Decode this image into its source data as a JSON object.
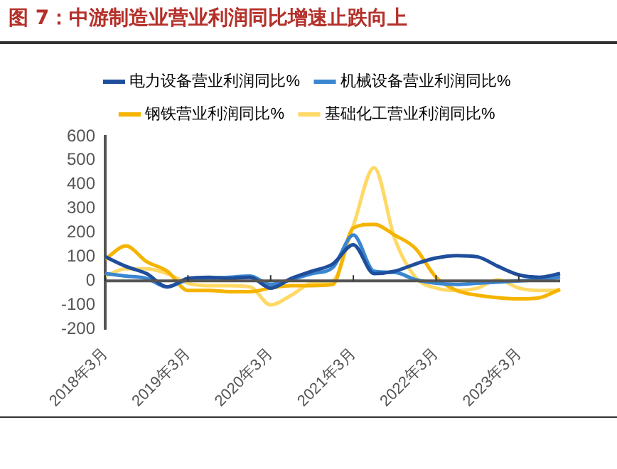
{
  "chart_data": {
    "type": "line",
    "title": "图 7：中游制造业营业利润同比增速止跌向上",
    "categories": [
      "2018年3月",
      null,
      null,
      null,
      "2019年3月",
      null,
      null,
      null,
      "2020年3月",
      null,
      null,
      null,
      "2021年3月",
      null,
      null,
      null,
      "2022年3月",
      null,
      null,
      null,
      "2023年3月",
      null,
      null
    ],
    "series": [
      {
        "name": "电力设备营业利润同比%",
        "color": "#1f4e9c",
        "values": [
          100,
          60,
          30,
          -25,
          10,
          15,
          10,
          15,
          -30,
          10,
          40,
          70,
          150,
          30,
          40,
          70,
          95,
          105,
          100,
          60,
          25,
          15,
          30
        ]
      },
      {
        "name": "机械设备营业利润同比%",
        "color": "#3a86d0",
        "values": [
          30,
          20,
          10,
          -25,
          5,
          10,
          15,
          20,
          -15,
          5,
          30,
          55,
          190,
          40,
          35,
          5,
          -10,
          -15,
          -10,
          -5,
          0,
          5,
          15
        ]
      },
      {
        "name": "钢铁营业利润同比%",
        "color": "#f5b400",
        "values": [
          90,
          145,
          80,
          40,
          -40,
          -40,
          -45,
          -45,
          -30,
          -20,
          -20,
          -15,
          220,
          235,
          190,
          135,
          15,
          -40,
          -60,
          -70,
          -75,
          -70,
          -35
        ]
      },
      {
        "name": "基础化工营业利润同比%",
        "color": "#ffd966",
        "values": [
          20,
          50,
          50,
          30,
          -10,
          -20,
          -20,
          -25,
          -100,
          -60,
          -10,
          0,
          230,
          470,
          175,
          15,
          -30,
          -40,
          -30,
          5,
          -30,
          -40,
          -40
        ]
      }
    ],
    "ylim": [
      -200,
      600
    ],
    "yticks": [
      600,
      500,
      400,
      300,
      200,
      100,
      0,
      -100,
      -200
    ],
    "legend": "top",
    "line_style": "solid",
    "marker": "none"
  }
}
